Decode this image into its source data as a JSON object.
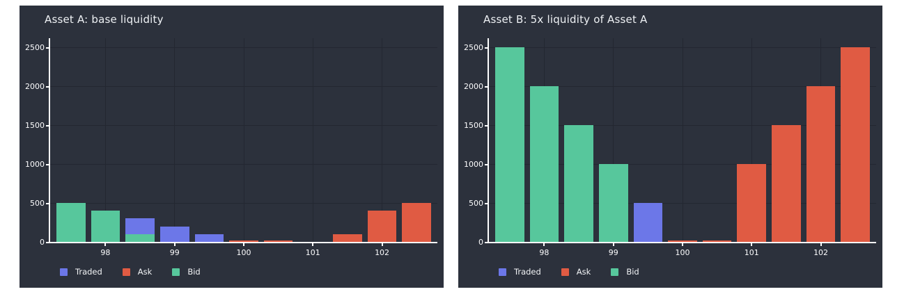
{
  "theme": {
    "page_background": "#ffffff",
    "panel_background": "#2c313c",
    "grid_color": "#232731",
    "axis_color": "#ffffff",
    "text_color": "#f2f4f6"
  },
  "series_colors": {
    "Traded": "#6c77e8",
    "Ask": "#e05b43",
    "Bid": "#57c79c"
  },
  "legend": {
    "items": [
      {
        "label": "Traded",
        "color": "#6c77e8"
      },
      {
        "label": "Ask",
        "color": "#e05b43"
      },
      {
        "label": "Bid",
        "color": "#57c79c"
      }
    ],
    "position": "bottom-left"
  },
  "chart_data": [
    {
      "type": "bar",
      "title": "Asset A: base liquidity",
      "xlabel": "",
      "ylabel": "",
      "x_ticks": [
        98,
        99,
        100,
        101,
        102
      ],
      "y_ticks": [
        0,
        500,
        1000,
        1500,
        2000,
        2500
      ],
      "x_range": [
        97.2,
        102.8
      ],
      "y_range": [
        0,
        2615
      ],
      "bar_width_price": 0.42,
      "grid": true,
      "bars": [
        {
          "price": 97.5,
          "series": "Bid",
          "value": 500
        },
        {
          "price": 98,
          "series": "Bid",
          "value": 400
        },
        {
          "price": 98.5,
          "series": "Traded",
          "value": 300
        },
        {
          "price": 98.5,
          "series": "Bid",
          "value": 100
        },
        {
          "price": 99,
          "series": "Traded",
          "value": 200
        },
        {
          "price": 99.5,
          "series": "Traded",
          "value": 100
        },
        {
          "price": 100,
          "series": "Ask",
          "value": 15
        },
        {
          "price": 100.5,
          "series": "Ask",
          "value": 15
        },
        {
          "price": 101.5,
          "series": "Ask",
          "value": 100
        },
        {
          "price": 102,
          "series": "Ask",
          "value": 400
        },
        {
          "price": 102.5,
          "series": "Ask",
          "value": 500
        }
      ]
    },
    {
      "type": "bar",
      "title": "Asset B: 5x liquidity of Asset A",
      "xlabel": "",
      "ylabel": "",
      "x_ticks": [
        98,
        99,
        100,
        101,
        102
      ],
      "y_ticks": [
        0,
        500,
        1000,
        1500,
        2000,
        2500
      ],
      "x_range": [
        97.2,
        102.8
      ],
      "y_range": [
        0,
        2615
      ],
      "bar_width_price": 0.42,
      "grid": true,
      "bars": [
        {
          "price": 97.5,
          "series": "Bid",
          "value": 2500
        },
        {
          "price": 98,
          "series": "Bid",
          "value": 2000
        },
        {
          "price": 98.5,
          "series": "Bid",
          "value": 1500
        },
        {
          "price": 99,
          "series": "Bid",
          "value": 1000
        },
        {
          "price": 99.5,
          "series": "Traded",
          "value": 500
        },
        {
          "price": 100,
          "series": "Ask",
          "value": 15
        },
        {
          "price": 100.5,
          "series": "Ask",
          "value": 15
        },
        {
          "price": 101,
          "series": "Ask",
          "value": 1000
        },
        {
          "price": 101.5,
          "series": "Ask",
          "value": 1500
        },
        {
          "price": 102,
          "series": "Ask",
          "value": 2000
        },
        {
          "price": 102.5,
          "series": "Ask",
          "value": 2500
        }
      ]
    }
  ]
}
